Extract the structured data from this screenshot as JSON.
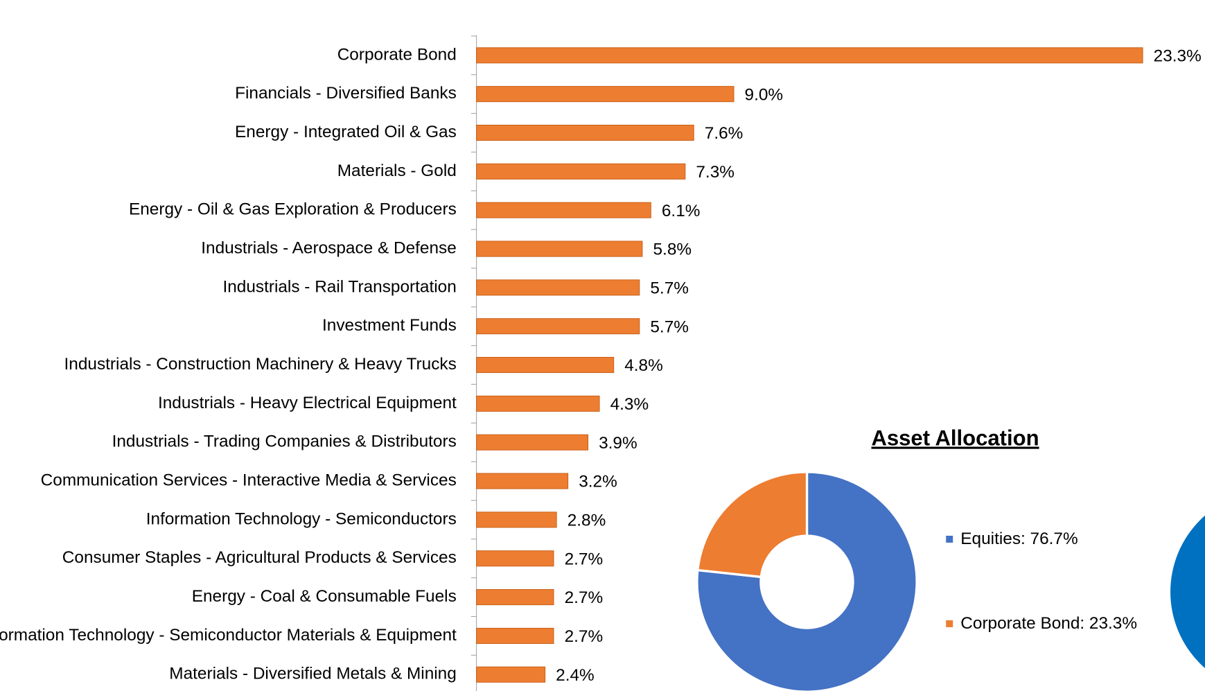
{
  "chart_data": [
    {
      "type": "hbar",
      "categories": [
        "Corporate Bond",
        "Financials - Diversified Banks",
        "Energy - Integrated Oil & Gas",
        "Materials - Gold",
        "Energy - Oil & Gas Exploration & Producers",
        "Industrials - Aerospace & Defense",
        "Industrials - Rail Transportation",
        "Investment Funds",
        "Industrials - Construction Machinery & Heavy Trucks",
        "Industrials - Heavy Electrical Equipment",
        "Industrials - Trading Companies & Distributors",
        "Communication Services - Interactive Media & Services",
        "Information Technology - Semiconductors",
        "Consumer Staples - Agricultural Products & Services",
        "Energy - Coal & Consumable Fuels",
        "Information Technology - Semiconductor Materials & Equipment",
        "Materials - Diversified Metals & Mining"
      ],
      "values": [
        23.3,
        9.0,
        7.6,
        7.3,
        6.1,
        5.8,
        5.7,
        5.7,
        4.8,
        4.3,
        3.9,
        3.2,
        2.8,
        2.7,
        2.7,
        2.7,
        2.4
      ],
      "value_labels": [
        "23.3%",
        "9.0%",
        "7.6%",
        "7.3%",
        "6.1%",
        "5.8%",
        "5.7%",
        "5.7%",
        "4.8%",
        "4.3%",
        "3.9%",
        "3.2%",
        "2.8%",
        "2.7%",
        "2.7%",
        "2.7%",
        "2.4%"
      ],
      "color": "#ed7d31",
      "xlim": [
        0,
        23.3
      ]
    },
    {
      "type": "donut",
      "title": "Asset Allocation",
      "labels": [
        "Equities: 76.7%",
        "Corporate Bond: 23.3%"
      ],
      "values": [
        76.7,
        23.3
      ],
      "colors": [
        "#4472c4",
        "#ed7d31"
      ]
    }
  ]
}
